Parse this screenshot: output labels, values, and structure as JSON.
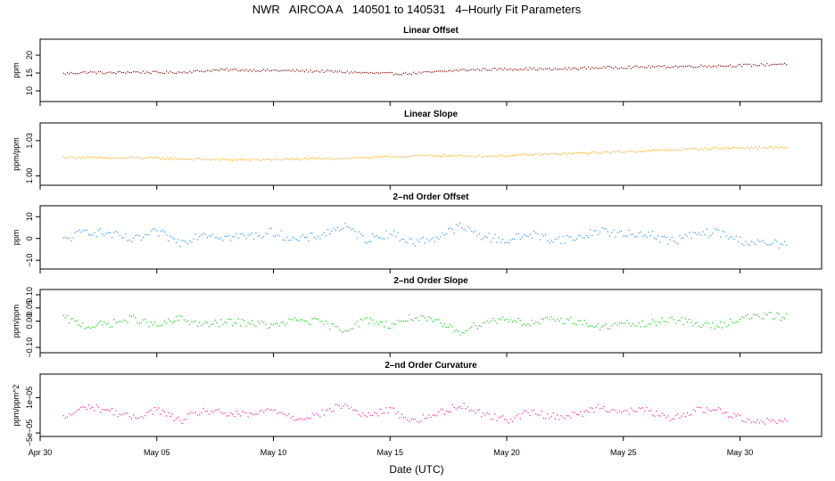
{
  "chart_data": {
    "type": "scatter",
    "title": "NWR   AIRCOA A   140501 to 140531   4–Hourly Fit Parameters",
    "xlabel": "Date (UTC)",
    "x_unit": "days after Apr 30",
    "xlim": [
      0.0,
      33.5
    ],
    "x_ticks": [
      {
        "value": 0,
        "label": "Apr 30"
      },
      {
        "value": 5,
        "label": "May 05"
      },
      {
        "value": 10,
        "label": "May 10"
      },
      {
        "value": 15,
        "label": "May 15"
      },
      {
        "value": 20,
        "label": "May 20"
      },
      {
        "value": 25,
        "label": "May 25"
      },
      {
        "value": 30,
        "label": "May 30"
      }
    ],
    "data_range": [
      1.0,
      32.0
    ],
    "panels": [
      {
        "title": "Linear Offset",
        "ylabel": "ppm",
        "ylim": [
          7.0,
          24.5
        ],
        "yticks": [
          {
            "value": 10,
            "label": "10"
          },
          {
            "value": 15,
            "label": "15"
          },
          {
            "value": 20,
            "label": "20"
          }
        ],
        "color": "#8B0000",
        "noise": 0.35,
        "series_points": [
          [
            1,
            14.8
          ],
          [
            2,
            15.2
          ],
          [
            3,
            15.0
          ],
          [
            4,
            15.3
          ],
          [
            5,
            15.1
          ],
          [
            6,
            15.2
          ],
          [
            7,
            15.6
          ],
          [
            8,
            15.9
          ],
          [
            9,
            15.8
          ],
          [
            10,
            15.7
          ],
          [
            11,
            15.6
          ],
          [
            12,
            15.5
          ],
          [
            13,
            15.3
          ],
          [
            14,
            15.0
          ],
          [
            15,
            14.8
          ],
          [
            16,
            14.9
          ],
          [
            17,
            15.3
          ],
          [
            18,
            15.8
          ],
          [
            19,
            16.0
          ],
          [
            20,
            16.1
          ],
          [
            21,
            16.2
          ],
          [
            22,
            16.0
          ],
          [
            23,
            16.3
          ],
          [
            24,
            16.5
          ],
          [
            25,
            16.6
          ],
          [
            26,
            16.7
          ],
          [
            27,
            16.8
          ],
          [
            28,
            16.9
          ],
          [
            29,
            17.0
          ],
          [
            30,
            17.1
          ],
          [
            31,
            17.3
          ],
          [
            32,
            17.6
          ]
        ]
      },
      {
        "title": "Linear Slope",
        "ylabel": "ppm/ppm",
        "ylim": [
          0.992,
          1.045
        ],
        "yticks": [
          {
            "value": 1.0,
            "label": "1.00"
          },
          {
            "value": 1.03,
            "label": "1.03"
          }
        ],
        "color": "#FFA500",
        "noise": 0.0009,
        "series_points": [
          [
            1,
            1.016
          ],
          [
            2,
            1.0155
          ],
          [
            3,
            1.015
          ],
          [
            4,
            1.0155
          ],
          [
            5,
            1.015
          ],
          [
            6,
            1.0145
          ],
          [
            7,
            1.014
          ],
          [
            8,
            1.0138
          ],
          [
            9,
            1.0135
          ],
          [
            10,
            1.014
          ],
          [
            11,
            1.0142
          ],
          [
            12,
            1.0145
          ],
          [
            13,
            1.015
          ],
          [
            14,
            1.0155
          ],
          [
            15,
            1.0162
          ],
          [
            16,
            1.0168
          ],
          [
            17,
            1.0172
          ],
          [
            18,
            1.017
          ],
          [
            19,
            1.0168
          ],
          [
            20,
            1.017
          ],
          [
            21,
            1.0178
          ],
          [
            22,
            1.0185
          ],
          [
            23,
            1.0192
          ],
          [
            24,
            1.0198
          ],
          [
            25,
            1.0205
          ],
          [
            26,
            1.0212
          ],
          [
            27,
            1.022
          ],
          [
            28,
            1.0228
          ],
          [
            29,
            1.0235
          ],
          [
            30,
            1.0238
          ],
          [
            31,
            1.024
          ],
          [
            32,
            1.0242
          ]
        ]
      },
      {
        "title": "2–nd Order Offset",
        "ylabel": "ppm",
        "ylim": [
          -14,
          15
        ],
        "yticks": [
          {
            "value": -10,
            "label": "−10"
          },
          {
            "value": 0,
            "label": "0"
          },
          {
            "value": 10,
            "label": "10"
          }
        ],
        "color": "#1E90FF",
        "noise": 2.0,
        "series_points": [
          [
            1,
            -1.0
          ],
          [
            2,
            3.5
          ],
          [
            3,
            2.0
          ],
          [
            4,
            -1.0
          ],
          [
            5,
            3.0
          ],
          [
            6,
            -2.0
          ],
          [
            7,
            2.5
          ],
          [
            8,
            0.5
          ],
          [
            9,
            1.0
          ],
          [
            10,
            3.0
          ],
          [
            11,
            -1.0
          ],
          [
            12,
            1.5
          ],
          [
            13,
            5.5
          ],
          [
            14,
            -0.5
          ],
          [
            15,
            2.5
          ],
          [
            16,
            -2.0
          ],
          [
            17,
            0.5
          ],
          [
            18,
            5.5
          ],
          [
            19,
            1.0
          ],
          [
            20,
            -1.0
          ],
          [
            21,
            2.0
          ],
          [
            22,
            -0.5
          ],
          [
            23,
            0.0
          ],
          [
            24,
            4.0
          ],
          [
            25,
            1.5
          ],
          [
            26,
            2.5
          ],
          [
            27,
            -1.5
          ],
          [
            28,
            1.5
          ],
          [
            29,
            3.0
          ],
          [
            30,
            -1.0
          ],
          [
            31,
            -2.5
          ],
          [
            32,
            -2.5
          ]
        ]
      },
      {
        "title": "2–nd Order Slope",
        "ylabel": "ppm/ppm",
        "ylim": [
          -0.12,
          0.12
        ],
        "yticks": [
          {
            "value": -0.1,
            "label": "−0.10"
          },
          {
            "value": 0.0,
            "label": "0.00"
          },
          {
            "value": 0.05,
            "label": "0.05"
          },
          {
            "value": 0.1,
            "label": "0.10"
          }
        ],
        "color": "#00CC00",
        "noise": 0.014,
        "series_points": [
          [
            1,
            0.012
          ],
          [
            2,
            -0.02
          ],
          [
            3,
            -0.01
          ],
          [
            4,
            0.01
          ],
          [
            5,
            -0.02
          ],
          [
            6,
            0.01
          ],
          [
            7,
            -0.015
          ],
          [
            8,
            -0.005
          ],
          [
            9,
            -0.005
          ],
          [
            10,
            -0.02
          ],
          [
            11,
            0.005
          ],
          [
            12,
            -0.005
          ],
          [
            13,
            -0.035
          ],
          [
            14,
            0.005
          ],
          [
            15,
            -0.015
          ],
          [
            16,
            0.015
          ],
          [
            17,
            -0.005
          ],
          [
            18,
            -0.04
          ],
          [
            19,
            -0.005
          ],
          [
            20,
            0.01
          ],
          [
            21,
            -0.01
          ],
          [
            22,
            0.005
          ],
          [
            23,
            0.0
          ],
          [
            24,
            -0.025
          ],
          [
            25,
            -0.01
          ],
          [
            26,
            -0.015
          ],
          [
            27,
            0.01
          ],
          [
            28,
            -0.01
          ],
          [
            29,
            -0.02
          ],
          [
            30,
            0.01
          ],
          [
            31,
            0.02
          ],
          [
            32,
            0.015
          ]
        ]
      },
      {
        "title": "2–nd Order Curvature",
        "ylabel": "ppm/ppm^2",
        "ylim": [
          -5.6e-05,
          5e-05
        ],
        "yticks": [
          {
            "value": -5e-05,
            "label": "−5e−05"
          },
          {
            "value": 1e-05,
            "label": "1e−05"
          }
        ],
        "color": "#FF1493",
        "noise": 6e-06,
        "series_points": [
          [
            1,
            -2.5e-05
          ],
          [
            2,
            -5e-06
          ],
          [
            3,
            -1.2e-05
          ],
          [
            4,
            -2.5e-05
          ],
          [
            5,
            -1e-05
          ],
          [
            6,
            -3e-05
          ],
          [
            7,
            -1.2e-05
          ],
          [
            8,
            -1.8e-05
          ],
          [
            9,
            -2e-05
          ],
          [
            10,
            -1e-05
          ],
          [
            11,
            -2.5e-05
          ],
          [
            12,
            -1.8e-05
          ],
          [
            13,
            -2e-06
          ],
          [
            14,
            -2.2e-05
          ],
          [
            15,
            -1e-05
          ],
          [
            16,
            -3e-05
          ],
          [
            17,
            -1.8e-05
          ],
          [
            18,
            -2e-06
          ],
          [
            19,
            -1.8e-05
          ],
          [
            20,
            -2.8e-05
          ],
          [
            21,
            -1.5e-05
          ],
          [
            22,
            -2.2e-05
          ],
          [
            23,
            -2e-05
          ],
          [
            24,
            -5e-06
          ],
          [
            25,
            -1.5e-05
          ],
          [
            26,
            -1e-05
          ],
          [
            27,
            -2.8e-05
          ],
          [
            28,
            -1.2e-05
          ],
          [
            29,
            -1e-05
          ],
          [
            30,
            -2.5e-05
          ],
          [
            31,
            -3e-05
          ],
          [
            32,
            -3e-05
          ]
        ]
      }
    ]
  }
}
